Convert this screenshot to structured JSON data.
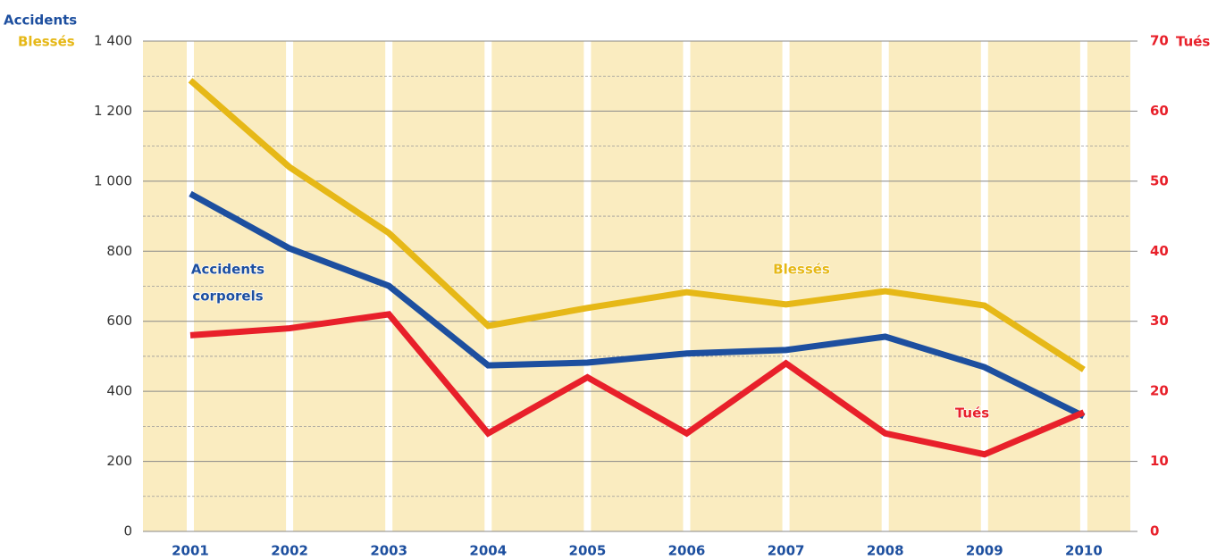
{
  "chart_data": {
    "type": "line",
    "categories": [
      "2001",
      "2002",
      "2003",
      "2004",
      "2005",
      "2006",
      "2007",
      "2008",
      "2009",
      "2010"
    ],
    "y_axis_titles": [
      "Accidents",
      "Blessés"
    ],
    "y2_axis_title": "Tués",
    "series": [
      {
        "color": "#1d4f9f",
        "values": [
          964,
          808,
          701,
          474,
          482,
          508,
          518,
          556,
          469,
          329
        ]
      },
      {
        "color": "#e6b817",
        "values": [
          1288,
          1040,
          852,
          587,
          638,
          683,
          648,
          686,
          645,
          462
        ]
      },
      {
        "color": "#e8202a",
        "axis": "y2",
        "values": [
          28,
          29,
          31,
          14,
          22,
          14,
          24,
          14,
          11,
          17
        ]
      }
    ],
    "annotations": [
      {
        "lines": [
          "Accidents",
          "corporels"
        ],
        "color": "#1d4f9f"
      },
      {
        "lines": [
          "Blessés"
        ],
        "color": "#e6b817"
      },
      {
        "lines": [
          "Tués"
        ],
        "color": "#e8202a"
      }
    ],
    "ylim": [
      0,
      1400
    ],
    "yticks": [
      0,
      200,
      400,
      600,
      800,
      {
        "value": 1000,
        "label": "1 000"
      },
      {
        "value": 1200,
        "label": "1 200"
      },
      {
        "value": 1400,
        "label": "1 400"
      }
    ],
    "y2lim": [
      0,
      70
    ],
    "y2ticks": [
      0,
      10,
      20,
      30,
      40,
      50,
      60,
      70
    ],
    "grid": true
  }
}
